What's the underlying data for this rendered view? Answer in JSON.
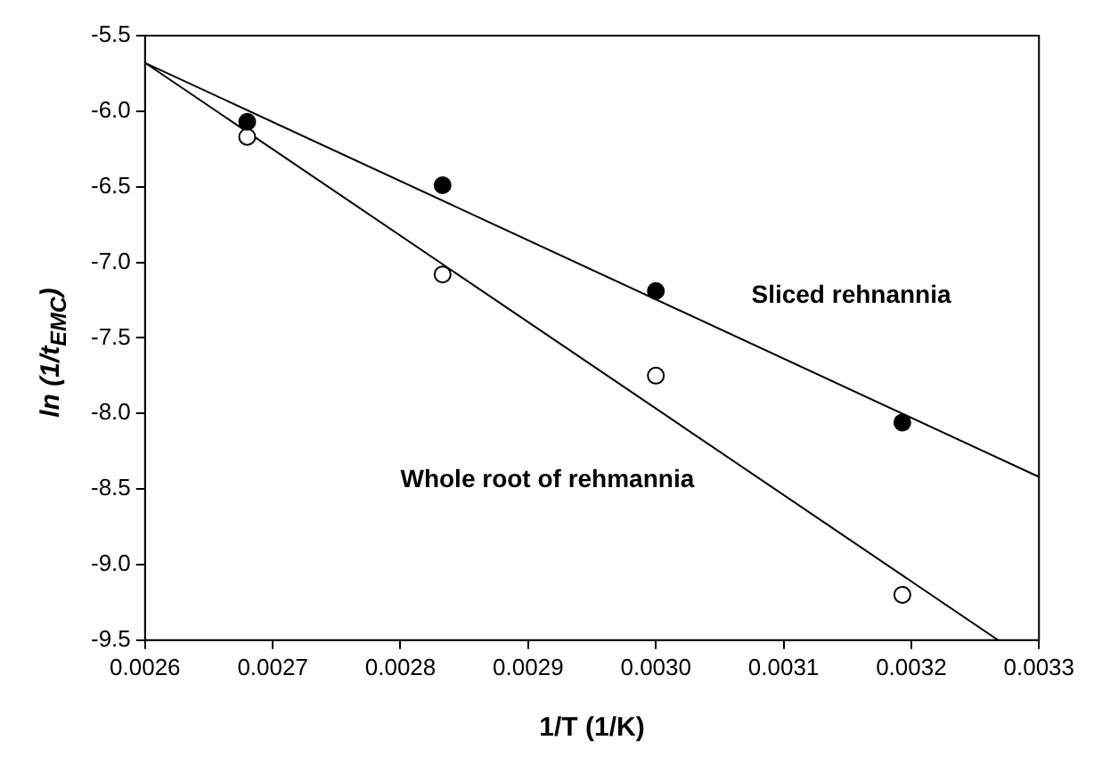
{
  "chart_data": {
    "type": "scatter",
    "xlabel": "1/T (1/K)",
    "ylabel": "ln (1/t$_{EMC}$)",
    "xlim": [
      0.0026,
      0.0033
    ],
    "xticks": [
      0.0026,
      0.0027,
      0.0028,
      0.0029,
      {
        "value": 0.003,
        "label": "0.0030"
      },
      0.0031,
      0.0032,
      0.0033
    ],
    "ylim": [
      -9.5,
      -5.5
    ],
    "yticks": [
      -5.5,
      {
        "value": -6,
        "label": "-6.0"
      },
      -6.5,
      {
        "value": -7,
        "label": "-7.0"
      },
      -7.5,
      {
        "value": -8,
        "label": "-8.0"
      },
      -8.5,
      {
        "value": -9,
        "label": "-9.0"
      },
      -9.5
    ],
    "grid": false,
    "legend": false,
    "series": [
      {
        "type": "line",
        "marker": "none",
        "color": "#000000",
        "x": [
          0.0026,
          0.0033
        ],
        "values": [
          -5.68,
          -8.42
        ]
      },
      {
        "type": "line",
        "marker": "none",
        "color": "#000000",
        "x": [
          0.0026,
          0.003268
        ],
        "values": [
          -5.68,
          -9.5
        ]
      },
      {
        "marker": "circle",
        "color": "#000000",
        "x": [
          0.00268,
          0.002833,
          0.003,
          0.003193
        ],
        "values": [
          -6.07,
          -6.49,
          -7.19,
          -8.06
        ]
      },
      {
        "marker": "circle",
        "color": "#ffffff",
        "x": [
          0.00268,
          0.002833,
          0.003,
          0.003193
        ],
        "values": [
          -6.17,
          -7.08,
          -7.75,
          -9.2
        ]
      }
    ],
    "annotations": [
      "Sliced rehnannia",
      "Whole root of rehmannia"
    ]
  }
}
